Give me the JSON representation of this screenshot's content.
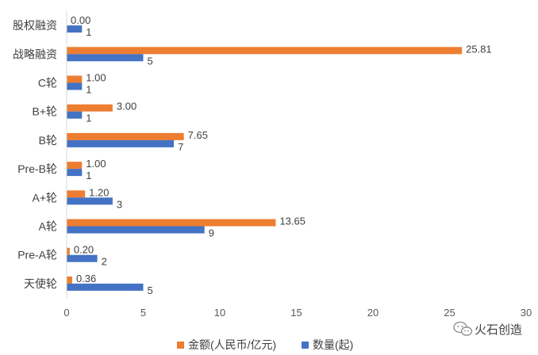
{
  "chart_data": {
    "type": "bar",
    "orientation": "horizontal",
    "categories": [
      "股权融资",
      "战略融资",
      "C轮",
      "B+轮",
      "B轮",
      "Pre-B轮",
      "A+轮",
      "A轮",
      "Pre-A轮",
      "天使轮"
    ],
    "series": [
      {
        "name": "金额(人民币/亿元)",
        "color": "#ED7D31",
        "values": [
          0.0,
          25.81,
          1.0,
          3.0,
          7.65,
          1.0,
          1.2,
          13.65,
          0.2,
          0.36
        ],
        "labels": [
          "0.00",
          "25.81",
          "1.00",
          "3.00",
          "7.65",
          "1.00",
          "1.20",
          "13.65",
          "0.20",
          "0.36"
        ]
      },
      {
        "name": "数量(起)",
        "color": "#4472C4",
        "values": [
          1,
          5,
          1,
          1,
          7,
          1,
          3,
          9,
          2,
          5
        ],
        "labels": [
          "1",
          "5",
          "1",
          "1",
          "7",
          "1",
          "3",
          "9",
          "2",
          "5"
        ]
      }
    ],
    "xlim": [
      0,
      30
    ],
    "xticks": [
      "0",
      "5",
      "10",
      "15",
      "20",
      "25",
      "30"
    ],
    "grid": false,
    "legend_position": "bottom"
  },
  "watermark": {
    "text": "火石创造",
    "icon": "wechat-icon"
  }
}
